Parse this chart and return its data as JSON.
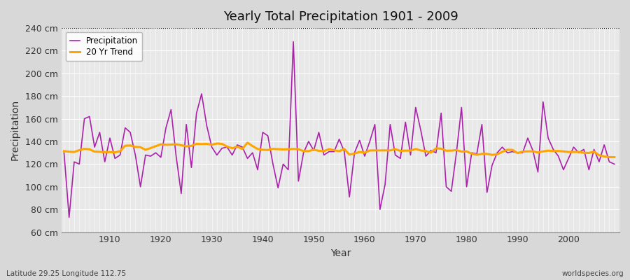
{
  "title": "Yearly Total Precipitation 1901 - 2009",
  "xlabel": "Year",
  "ylabel": "Precipitation",
  "footnote_left": "Latitude 29.25 Longitude 112.75",
  "footnote_right": "worldspecies.org",
  "legend_precipitation": "Precipitation",
  "legend_trend": "20 Yr Trend",
  "start_year": 1901,
  "end_year": 2009,
  "ylim_min": 60,
  "ylim_max": 240,
  "ytick_interval": 20,
  "fig_bg_color": "#d8d8d8",
  "plot_bg_color": "#e8e8e8",
  "precip_color": "#aa22aa",
  "trend_color": "#ffa500",
  "grid_color": "#ffffff",
  "precipitation": [
    130,
    73,
    122,
    120,
    160,
    162,
    135,
    148,
    122,
    143,
    125,
    128,
    152,
    148,
    128,
    100,
    128,
    127,
    130,
    126,
    152,
    168,
    127,
    94,
    155,
    117,
    165,
    182,
    154,
    135,
    128,
    134,
    135,
    128,
    137,
    135,
    125,
    130,
    115,
    148,
    145,
    120,
    99,
    120,
    115,
    228,
    105,
    130,
    140,
    132,
    148,
    128,
    131,
    131,
    142,
    131,
    91,
    130,
    141,
    127,
    140,
    155,
    80,
    102,
    155,
    128,
    125,
    157,
    128,
    170,
    150,
    127,
    132,
    130,
    165,
    100,
    96,
    130,
    170,
    100,
    130,
    129,
    155,
    95,
    119,
    130,
    135,
    130,
    131,
    130,
    130,
    143,
    132,
    113,
    175,
    143,
    133,
    127,
    115,
    125,
    135,
    130,
    133,
    115,
    133,
    122,
    137,
    122,
    120
  ],
  "trend": [
    130,
    130,
    130,
    130,
    130,
    131,
    131,
    130,
    130,
    130,
    130,
    130,
    130,
    130,
    130,
    130,
    130,
    130,
    130,
    131,
    131,
    131,
    132,
    133,
    133,
    133,
    133,
    133,
    134,
    134,
    134,
    134,
    134,
    134,
    134,
    134,
    135,
    135,
    135,
    135,
    135,
    134,
    132,
    131,
    130,
    130,
    129,
    129,
    129,
    130,
    130,
    130,
    130,
    130,
    130,
    130,
    130,
    130,
    130,
    130,
    130,
    130,
    130,
    130,
    129,
    129,
    129,
    129,
    129,
    129,
    129,
    129,
    129,
    129,
    129,
    129,
    129,
    129,
    129,
    129,
    129,
    129,
    129,
    129,
    129,
    129,
    129,
    129,
    129,
    129,
    129,
    129,
    129,
    130,
    130,
    130,
    130,
    130,
    130,
    130,
    130,
    130,
    130,
    130,
    130,
    130,
    130,
    130,
    130
  ]
}
